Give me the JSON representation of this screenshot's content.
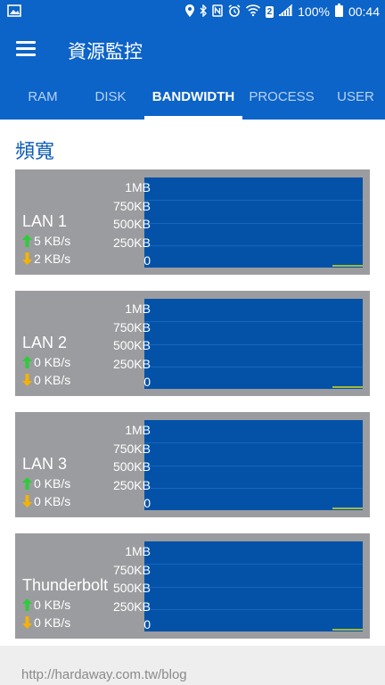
{
  "status_bar": {
    "battery": "100%",
    "time": "00:44",
    "notification_count": "2"
  },
  "appbar": {
    "title": "資源監控"
  },
  "tabs": [
    {
      "label": "RAM",
      "active": false
    },
    {
      "label": "DISK",
      "active": false
    },
    {
      "label": "BANDWIDTH",
      "active": true
    },
    {
      "label": "PROCESS",
      "active": false
    },
    {
      "label": "USER",
      "active": false
    }
  ],
  "section": {
    "title": "頻寬"
  },
  "y_axis_labels": [
    "1MB",
    "750KB",
    "500KB",
    "250KB",
    "0"
  ],
  "interfaces": [
    {
      "name": "LAN 1",
      "upload": "5 KB/s",
      "download": "2 KB/s"
    },
    {
      "name": "LAN 2",
      "upload": "0 KB/s",
      "download": "0 KB/s"
    },
    {
      "name": "LAN 3",
      "upload": "0 KB/s",
      "download": "0 KB/s"
    },
    {
      "name": "Thunderbolt",
      "upload": "0 KB/s",
      "download": "0 KB/s"
    }
  ],
  "colors": {
    "primary": "#0c63c8",
    "plot_bg": "#0352a8",
    "card_bg": "#9b9c9f",
    "upload_arrow": "#2ecc3a",
    "download_arrow": "#f5b300"
  },
  "watermark": "http://hardaway.com.tw/blog"
}
